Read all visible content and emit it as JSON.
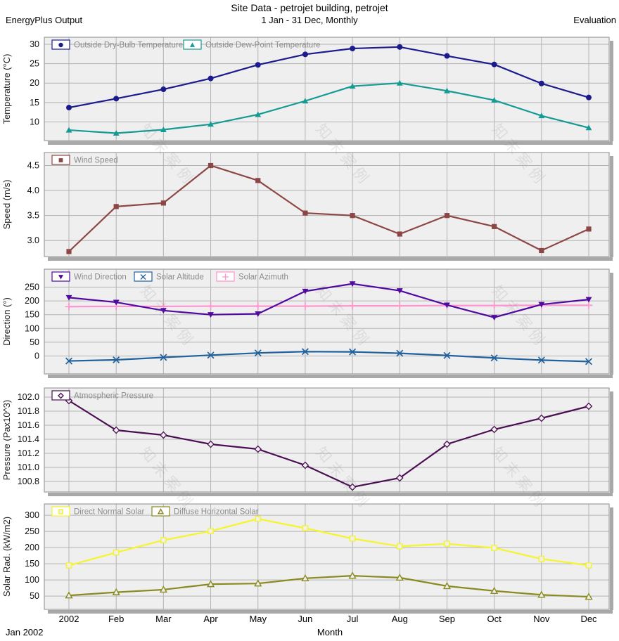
{
  "header": {
    "title": "Site Data - petrojet building, petrojet",
    "left": "EnergyPlus Output",
    "center": "1 Jan - 31 Dec, Monthly",
    "right": "Evaluation"
  },
  "footer": {
    "start_label": "Jan 2002",
    "xlabel": "Month"
  },
  "watermark_text": "知末案例",
  "colors": {
    "plot_bg": "#efefef",
    "grid": "#b3b3b3",
    "border": "#9c9c9c",
    "shadow": "#a8a8a8",
    "tick_text": "#111111",
    "axis_title_text": "#222222",
    "legend_text": "#8c8c8c",
    "legend_box_fill": "#ffffff"
  },
  "x_categories": [
    "2002",
    "Feb",
    "Mar",
    "Apr",
    "May",
    "Jun",
    "Jul",
    "Aug",
    "Sep",
    "Oct",
    "Nov",
    "Dec"
  ],
  "chart_data": [
    {
      "type": "line",
      "name": "temperature",
      "ylabel": "Temperature (°C)",
      "ylim": [
        5.2,
        31.8
      ],
      "ytick_values": [
        10,
        15,
        20,
        25,
        30
      ],
      "ytick_labels": [
        "10",
        "15",
        "20",
        "25",
        "30"
      ],
      "series": [
        {
          "name": "Outside Dry-Bulb Temperature",
          "marker": "filled-circle",
          "color": "#1b1b8e",
          "values": [
            13.7,
            16.0,
            18.4,
            21.2,
            24.7,
            27.4,
            28.9,
            29.3,
            27.0,
            24.8,
            19.9,
            16.3
          ]
        },
        {
          "name": "Outside Dew-Point Temperature",
          "marker": "filled-triangle-up",
          "color": "#159a94",
          "values": [
            7.9,
            7.1,
            8.0,
            9.4,
            11.9,
            15.4,
            19.2,
            20.0,
            18.0,
            15.6,
            11.6,
            8.5
          ]
        }
      ]
    },
    {
      "type": "line",
      "name": "wind-speed",
      "ylabel": "Speed (m/s)",
      "ylim": [
        2.68,
        4.76
      ],
      "ytick_values": [
        3.0,
        3.5,
        4.0,
        4.5
      ],
      "ytick_labels": [
        "3.0",
        "3.5",
        "4.0",
        "4.5"
      ],
      "series": [
        {
          "name": "Wind Speed",
          "marker": "filled-square",
          "color": "#8c4644",
          "values": [
            2.78,
            3.68,
            3.75,
            4.5,
            4.2,
            3.55,
            3.5,
            3.13,
            3.5,
            3.28,
            2.8,
            3.23
          ]
        }
      ]
    },
    {
      "type": "line",
      "name": "direction",
      "ylabel": "Direction (°)",
      "ylim": [
        -65,
        315
      ],
      "ytick_values": [
        0,
        50,
        100,
        150,
        200,
        250
      ],
      "ytick_labels": [
        "0",
        "50",
        "100",
        "150",
        "200",
        "250"
      ],
      "series": [
        {
          "name": "Wind Direction",
          "marker": "filled-triangle-down",
          "color": "#500aa0",
          "values": [
            212,
            195,
            165,
            150,
            153,
            235,
            262,
            237,
            185,
            140,
            187,
            205
          ]
        },
        {
          "name": "Solar Altitude",
          "marker": "x-cross",
          "color": "#20619e",
          "values": [
            -18,
            -14,
            -5,
            3,
            11,
            16,
            15,
            10,
            2,
            -7,
            -15,
            -20
          ]
        },
        {
          "name": "Solar Azimuth",
          "marker": "plus",
          "color": "#ff93cf",
          "values": [
            179,
            180,
            180,
            181,
            181,
            181,
            182,
            182,
            183,
            183,
            184,
            184
          ]
        }
      ]
    },
    {
      "type": "line",
      "name": "pressure",
      "ylabel": "Pressure (Pax10^3)",
      "ylim": [
        100.65,
        102.13
      ],
      "ytick_values": [
        100.8,
        101.0,
        101.2,
        101.4,
        101.6,
        101.8,
        102.0
      ],
      "ytick_labels": [
        "100.8",
        "101.0",
        "101.2",
        "101.4",
        "101.6",
        "101.8",
        "102.0"
      ],
      "series": [
        {
          "name": "Atmospheric Pressure",
          "marker": "open-diamond",
          "color": "#4b0e52",
          "values": [
            101.95,
            101.53,
            101.46,
            101.33,
            101.26,
            101.03,
            100.72,
            100.85,
            101.33,
            101.54,
            101.7,
            101.87
          ]
        }
      ]
    },
    {
      "type": "line",
      "name": "solar-radiation",
      "ylabel": "Solar Rad. (kW/m2)",
      "ylim": [
        9,
        335
      ],
      "ytick_values": [
        50,
        100,
        150,
        200,
        250,
        300
      ],
      "ytick_labels": [
        "50",
        "100",
        "150",
        "200",
        "250",
        "300"
      ],
      "series": [
        {
          "name": "Direct Normal Solar",
          "marker": "open-square",
          "color": "#f5f52a",
          "values": [
            145,
            185,
            223,
            251,
            289,
            260,
            228,
            204,
            212,
            199,
            165,
            145
          ]
        },
        {
          "name": "Diffuse Horizontal Solar",
          "marker": "open-triangle-up",
          "color": "#8a8a20",
          "values": [
            52,
            62,
            70,
            87,
            89,
            105,
            113,
            107,
            81,
            66,
            54,
            48
          ]
        }
      ]
    }
  ]
}
